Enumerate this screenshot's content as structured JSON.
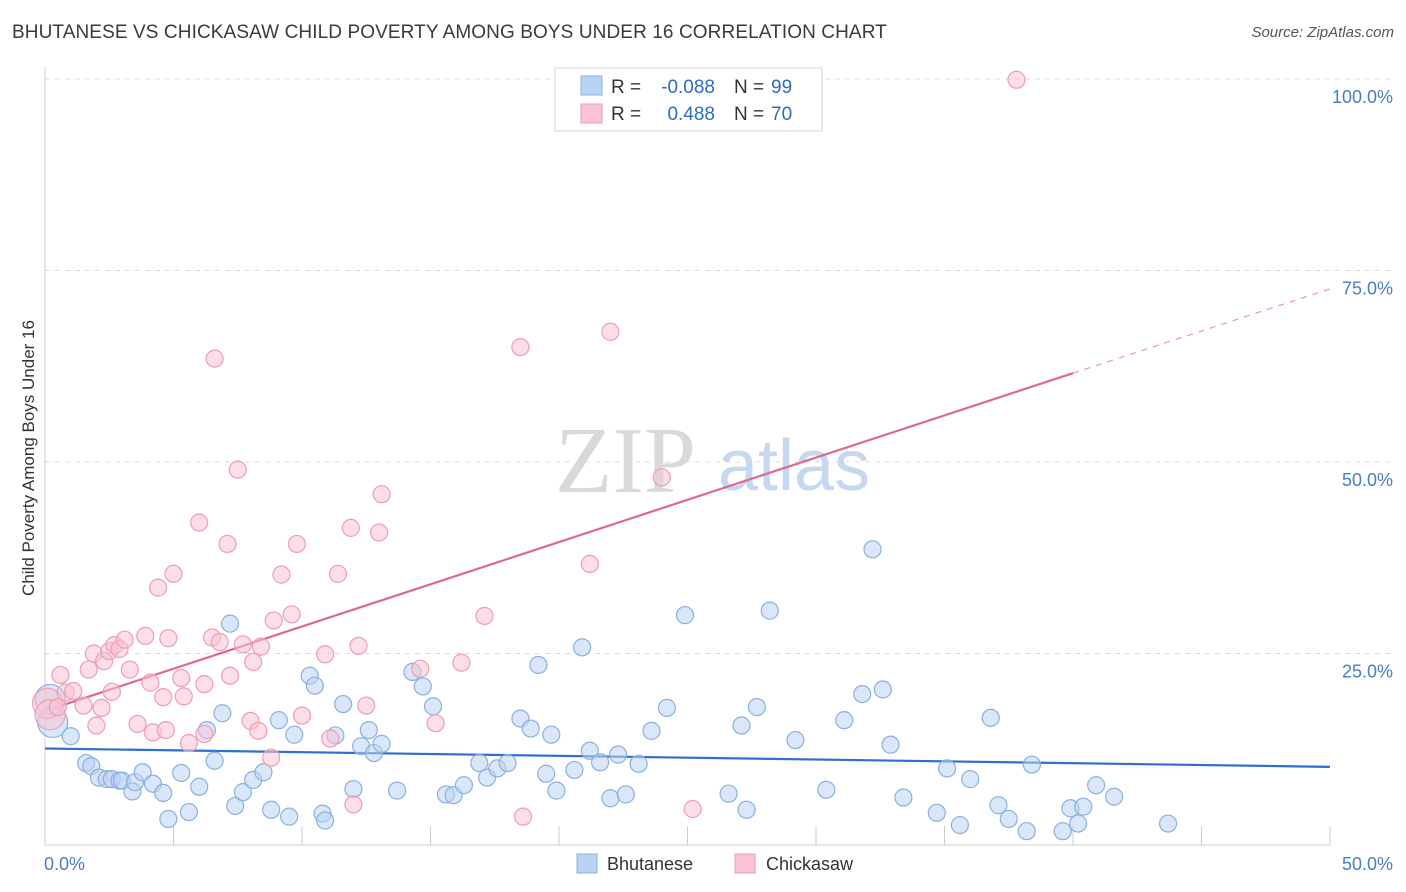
{
  "title": "BHUTANESE VS CHICKASAW CHILD POVERTY AMONG BOYS UNDER 16 CORRELATION CHART",
  "source": "Source: ZipAtlas.com",
  "watermark": {
    "part1": "ZIP",
    "part2": "atlas"
  },
  "colors": {
    "bhutanese_fill": "#b9d3f2",
    "bhutanese_stroke": "#8bb0e0",
    "bhutanese_line": "#2f6fce",
    "chickasaw_fill": "#f8c3d3",
    "chickasaw_stroke": "#ee9db5",
    "chickasaw_line": "#e06890",
    "tick_text": "#4a7cc4",
    "grid": "#dcdcdc"
  },
  "legend": {
    "rows": [
      {
        "r_label": "R =",
        "r_value": "-0.088",
        "n_label": "N =",
        "n_value": "99"
      },
      {
        "r_label": "R =",
        "r_value": "0.488",
        "n_label": "N =",
        "n_value": "70"
      }
    ],
    "bottom": [
      "Bhutanese",
      "Chickasaw"
    ]
  },
  "chart_data": {
    "type": "scatter",
    "title": "BHUTANESE VS CHICKASAW CHILD POVERTY AMONG BOYS UNDER 16 CORRELATION CHART",
    "xlabel": "",
    "ylabel": "Child Poverty Among Boys Under 16",
    "xlim": [
      0,
      50
    ],
    "ylim": [
      0,
      100
    ],
    "x_tick_labels": [
      "0.0%",
      "50.0%"
    ],
    "y_tick_labels": [
      "25.0%",
      "50.0%",
      "75.0%",
      "100.0%"
    ],
    "y_ticks": [
      25,
      50,
      75,
      100
    ],
    "grid": true,
    "legend_position": "top-center",
    "series": [
      {
        "name": "Bhutanese",
        "R": -0.088,
        "N": 99,
        "trend": {
          "x0": 0,
          "y0": 12.6,
          "x1": 50,
          "y1": 10.2
        },
        "points": [
          [
            0.2,
            19.0
          ],
          [
            0.3,
            16.0
          ],
          [
            1.0,
            14.2
          ],
          [
            1.6,
            10.7
          ],
          [
            1.8,
            10.3
          ],
          [
            2.1,
            8.8
          ],
          [
            2.4,
            8.6
          ],
          [
            2.6,
            8.6
          ],
          [
            2.9,
            8.4
          ],
          [
            3.0,
            8.4
          ],
          [
            3.4,
            7.0
          ],
          [
            3.5,
            8.2
          ],
          [
            3.8,
            9.5
          ],
          [
            4.2,
            8.0
          ],
          [
            4.6,
            6.8
          ],
          [
            4.8,
            3.4
          ],
          [
            5.3,
            9.4
          ],
          [
            5.6,
            4.3
          ],
          [
            6.0,
            7.6
          ],
          [
            6.3,
            15.0
          ],
          [
            6.6,
            11.0
          ],
          [
            6.9,
            17.2
          ],
          [
            7.2,
            28.9
          ],
          [
            7.4,
            5.1
          ],
          [
            7.7,
            6.9
          ],
          [
            8.1,
            8.5
          ],
          [
            8.5,
            9.5
          ],
          [
            8.8,
            4.6
          ],
          [
            9.1,
            16.3
          ],
          [
            9.5,
            3.7
          ],
          [
            9.7,
            14.4
          ],
          [
            10.3,
            22.1
          ],
          [
            10.5,
            20.8
          ],
          [
            10.8,
            4.1
          ],
          [
            10.9,
            3.2
          ],
          [
            11.3,
            14.3
          ],
          [
            11.6,
            18.4
          ],
          [
            12.0,
            7.3
          ],
          [
            12.3,
            12.9
          ],
          [
            12.6,
            15.0
          ],
          [
            12.8,
            12.0
          ],
          [
            13.1,
            13.2
          ],
          [
            13.7,
            7.1
          ],
          [
            14.3,
            22.6
          ],
          [
            14.7,
            20.7
          ],
          [
            15.1,
            18.1
          ],
          [
            15.6,
            6.6
          ],
          [
            15.9,
            6.5
          ],
          [
            16.3,
            7.8
          ],
          [
            16.9,
            10.7
          ],
          [
            17.2,
            8.8
          ],
          [
            17.6,
            10.0
          ],
          [
            18.0,
            10.7
          ],
          [
            18.5,
            16.5
          ],
          [
            18.9,
            15.2
          ],
          [
            19.2,
            23.5
          ],
          [
            19.5,
            9.3
          ],
          [
            19.7,
            14.4
          ],
          [
            19.9,
            7.1
          ],
          [
            20.6,
            9.8
          ],
          [
            20.9,
            25.8
          ],
          [
            21.2,
            12.3
          ],
          [
            21.6,
            10.8
          ],
          [
            22.0,
            6.1
          ],
          [
            22.3,
            11.8
          ],
          [
            22.6,
            6.6
          ],
          [
            23.1,
            10.6
          ],
          [
            23.6,
            14.9
          ],
          [
            24.2,
            17.9
          ],
          [
            24.9,
            30.0
          ],
          [
            26.6,
            6.7
          ],
          [
            27.1,
            15.6
          ],
          [
            27.3,
            4.6
          ],
          [
            27.7,
            18.0
          ],
          [
            28.2,
            30.6
          ],
          [
            29.2,
            13.7
          ],
          [
            30.4,
            7.2
          ],
          [
            31.1,
            16.3
          ],
          [
            31.8,
            19.7
          ],
          [
            32.2,
            38.6
          ],
          [
            32.6,
            20.3
          ],
          [
            32.9,
            13.1
          ],
          [
            33.4,
            6.2
          ],
          [
            34.7,
            4.2
          ],
          [
            35.1,
            10.0
          ],
          [
            35.6,
            2.6
          ],
          [
            36.0,
            8.6
          ],
          [
            36.8,
            16.6
          ],
          [
            37.1,
            5.2
          ],
          [
            37.5,
            3.4
          ],
          [
            38.2,
            1.8
          ],
          [
            38.4,
            10.5
          ],
          [
            39.6,
            1.8
          ],
          [
            39.9,
            4.8
          ],
          [
            40.2,
            2.8
          ],
          [
            40.4,
            5.0
          ],
          [
            40.9,
            7.8
          ],
          [
            41.6,
            6.3
          ],
          [
            43.7,
            2.8
          ]
        ]
      },
      {
        "name": "Chickasaw",
        "R": 0.488,
        "N": 70,
        "trend": {
          "x0": 0,
          "y0": 17.5,
          "x1": 40,
          "y1": 61.6
        },
        "trend_dashed": {
          "x0": 40,
          "y0": 61.6,
          "x1": 50,
          "y1": 72.6
        },
        "points": [
          [
            0.1,
            18.5
          ],
          [
            0.2,
            17.0
          ],
          [
            0.5,
            18.0
          ],
          [
            0.6,
            22.2
          ],
          [
            0.8,
            19.9
          ],
          [
            1.1,
            20.1
          ],
          [
            1.5,
            18.2
          ],
          [
            1.7,
            22.9
          ],
          [
            1.9,
            25.0
          ],
          [
            2.0,
            15.6
          ],
          [
            2.2,
            17.9
          ],
          [
            2.3,
            24.0
          ],
          [
            2.5,
            25.3
          ],
          [
            2.6,
            20.0
          ],
          [
            2.7,
            26.1
          ],
          [
            2.9,
            25.6
          ],
          [
            3.1,
            26.8
          ],
          [
            3.3,
            22.9
          ],
          [
            3.6,
            15.8
          ],
          [
            3.9,
            27.3
          ],
          [
            4.1,
            21.2
          ],
          [
            4.2,
            14.7
          ],
          [
            4.4,
            33.6
          ],
          [
            4.6,
            19.3
          ],
          [
            4.8,
            27.0
          ],
          [
            5.0,
            35.4
          ],
          [
            5.3,
            21.8
          ],
          [
            5.4,
            19.4
          ],
          [
            5.6,
            13.3
          ],
          [
            6.0,
            42.1
          ],
          [
            6.2,
            21.0
          ],
          [
            6.5,
            27.1
          ],
          [
            6.6,
            63.5
          ],
          [
            6.8,
            26.5
          ],
          [
            7.1,
            39.3
          ],
          [
            7.2,
            22.1
          ],
          [
            7.5,
            49.0
          ],
          [
            7.7,
            26.2
          ],
          [
            8.0,
            16.2
          ],
          [
            8.1,
            23.9
          ],
          [
            8.4,
            25.9
          ],
          [
            8.8,
            11.4
          ],
          [
            8.9,
            29.3
          ],
          [
            9.2,
            35.3
          ],
          [
            9.6,
            30.1
          ],
          [
            9.8,
            39.3
          ],
          [
            10.0,
            16.9
          ],
          [
            10.9,
            24.9
          ],
          [
            11.1,
            13.9
          ],
          [
            11.4,
            35.4
          ],
          [
            11.9,
            41.4
          ],
          [
            12.0,
            5.3
          ],
          [
            12.2,
            26.0
          ],
          [
            12.5,
            18.2
          ],
          [
            13.0,
            40.8
          ],
          [
            13.1,
            45.8
          ],
          [
            14.6,
            23.0
          ],
          [
            15.2,
            15.9
          ],
          [
            16.2,
            23.8
          ],
          [
            17.1,
            29.9
          ],
          [
            18.5,
            65.0
          ],
          [
            18.6,
            3.7
          ],
          [
            21.2,
            36.7
          ],
          [
            22.0,
            67.0
          ],
          [
            24.0,
            48.0
          ],
          [
            25.2,
            4.7
          ],
          [
            37.8,
            99.9
          ],
          [
            8.3,
            14.9
          ],
          [
            6.2,
            14.5
          ],
          [
            4.7,
            15.0
          ]
        ]
      }
    ]
  }
}
